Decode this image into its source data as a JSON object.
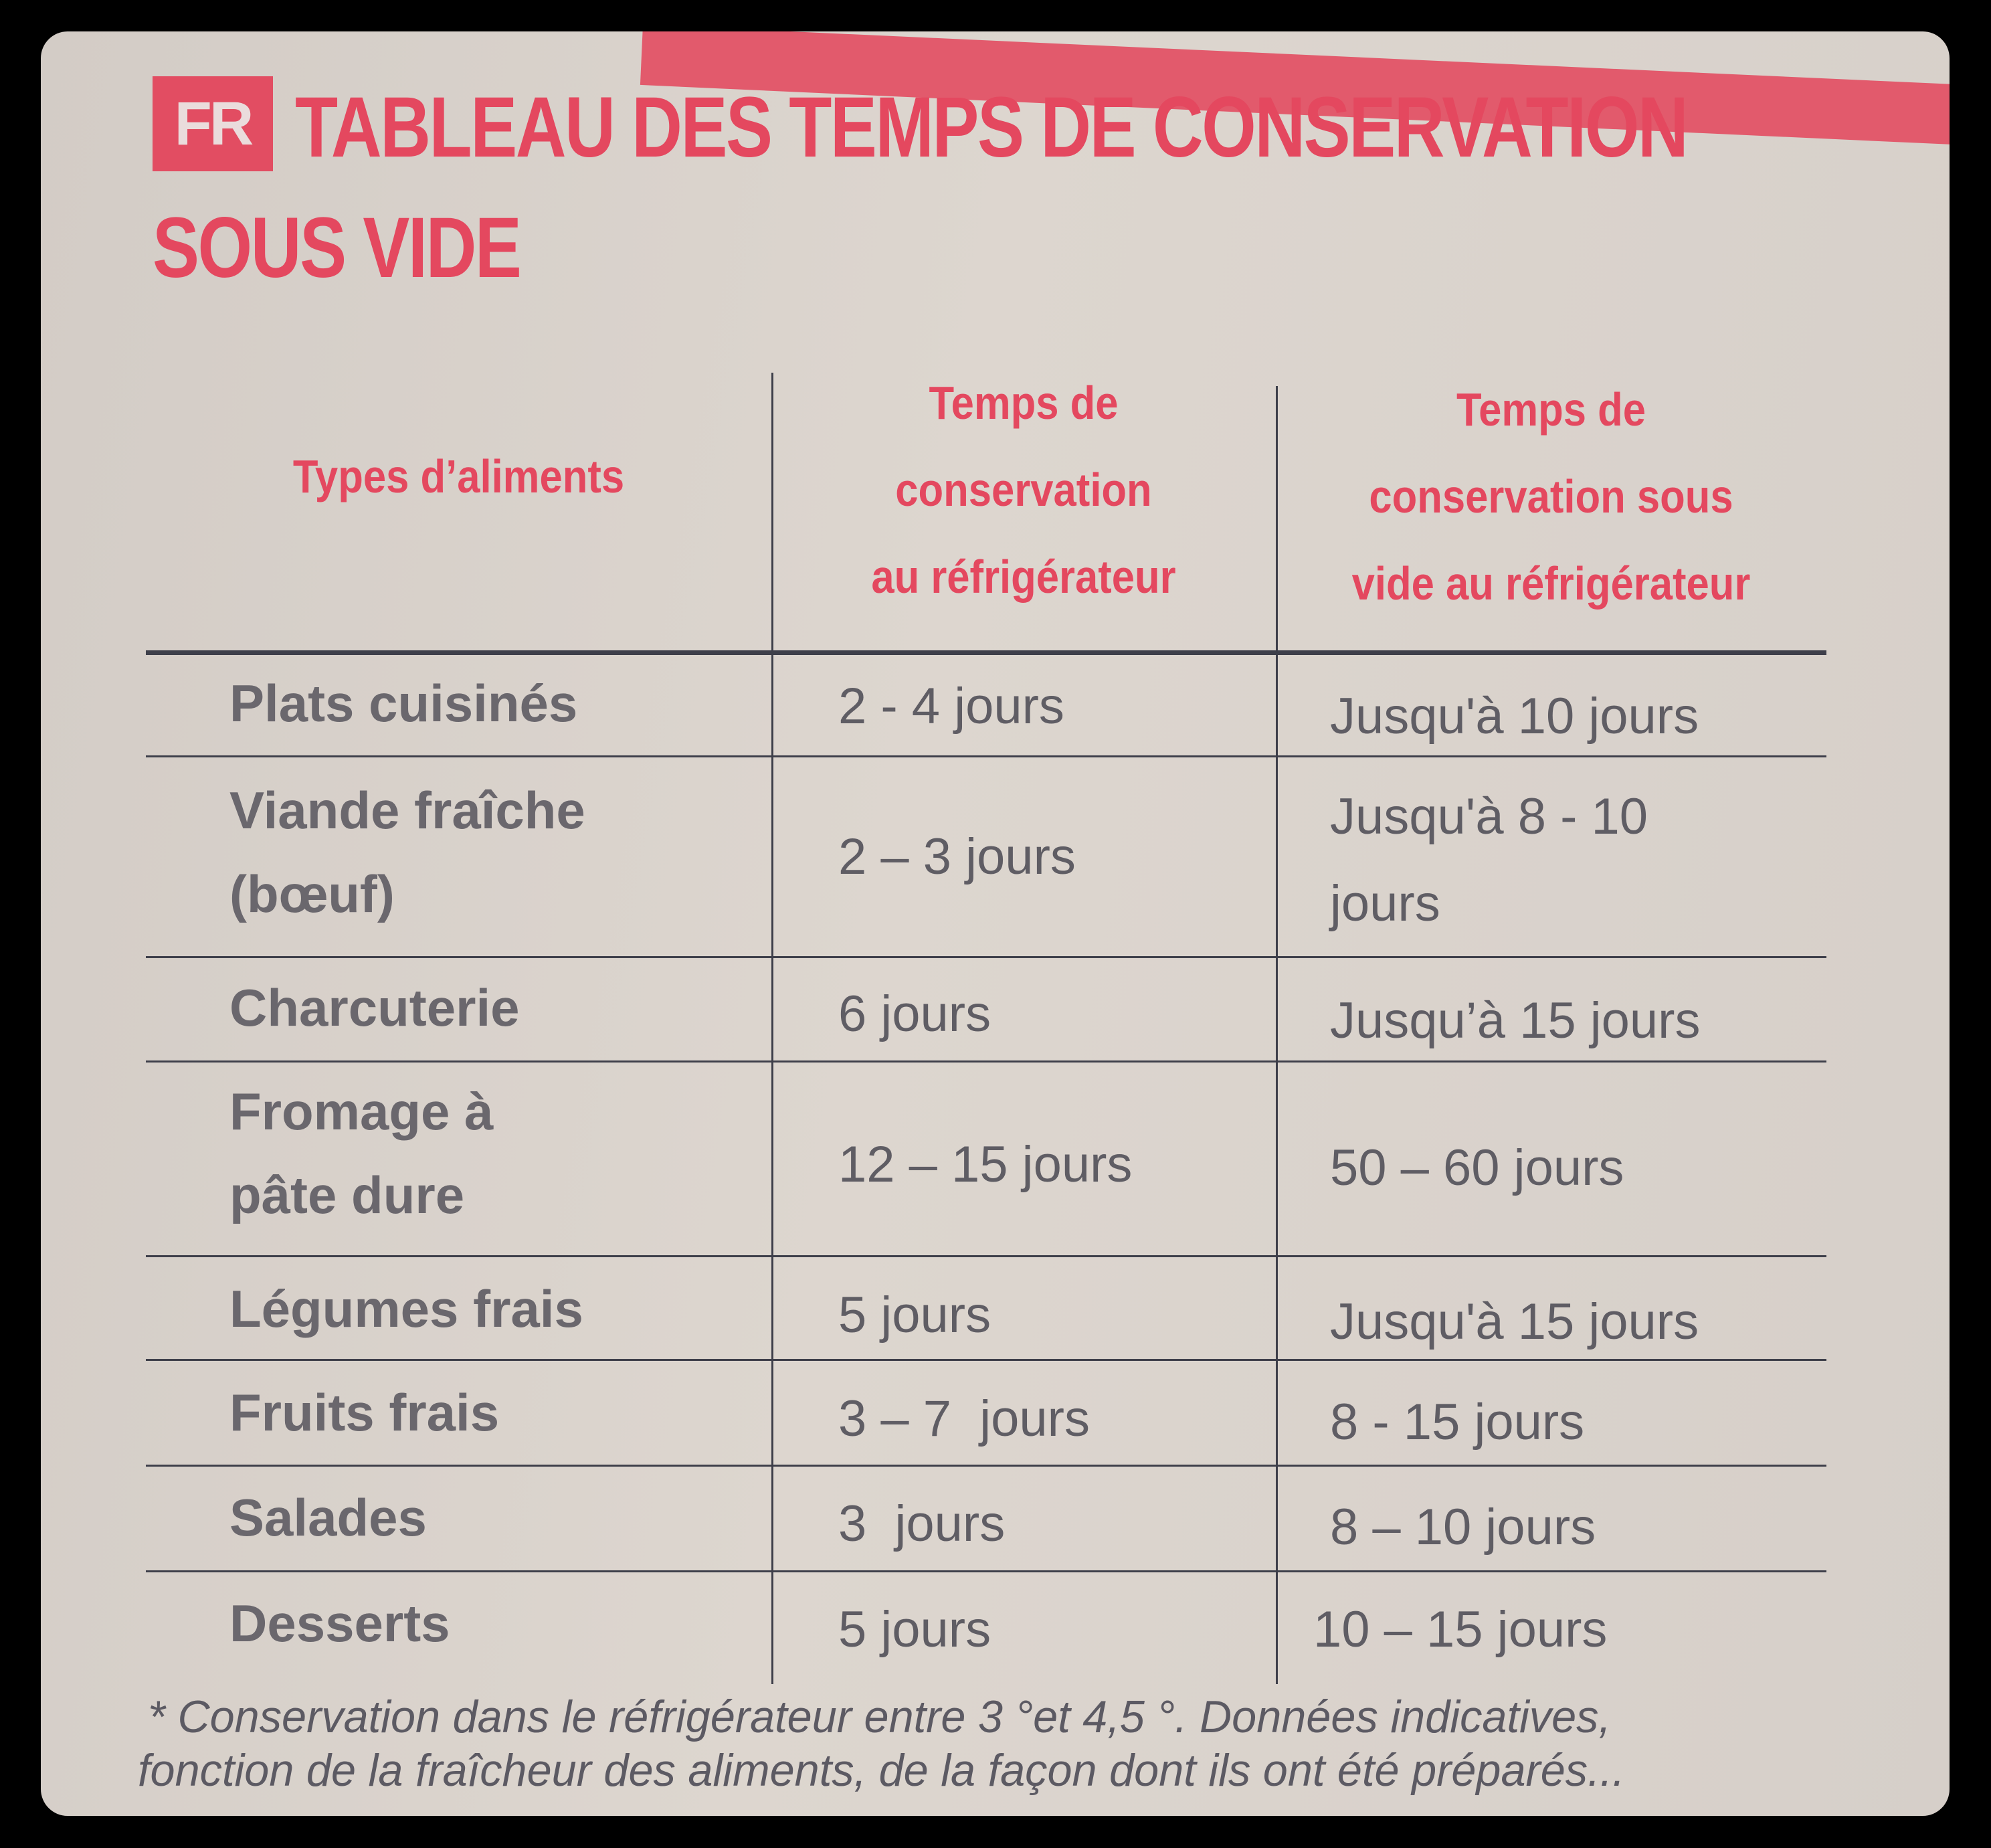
{
  "badge": "FR",
  "title_line1": "TABLEAU DES TEMPS DE CONSERVATION",
  "title_line2": "SOUS VIDE",
  "headers": {
    "col1": "Types d’aliments",
    "col2": [
      "Temps de",
      "conservation",
      "au réfrigérateur"
    ],
    "col3": [
      "Temps de",
      "conservation sous",
      "vide au réfrigérateur"
    ]
  },
  "rows": [
    {
      "food": [
        "Plats cuisinés"
      ],
      "fridge": "2 - 4 jours",
      "vacuum": [
        "Jusqu'à 10 jours"
      ]
    },
    {
      "food": [
        "Viande fraîche",
        "(bœuf)"
      ],
      "fridge": "2 – 3 jours",
      "vacuum": [
        "Jusqu'à 8 - 10",
        "jours"
      ]
    },
    {
      "food": [
        "Charcuterie"
      ],
      "fridge": "6 jours",
      "vacuum": [
        "Jusqu’à 15 jours"
      ]
    },
    {
      "food": [
        "Fromage à",
        "pâte dure"
      ],
      "fridge": "12 – 15 jours",
      "vacuum": [
        "50 – 60 jours"
      ]
    },
    {
      "food": [
        "Légumes frais"
      ],
      "fridge": "5 jours",
      "vacuum": [
        "Jusqu'à 15 jours"
      ]
    },
    {
      "food": [
        "Fruits frais"
      ],
      "fridge": "3 – 7  jours",
      "vacuum": [
        "8 - 15 jours"
      ]
    },
    {
      "food": [
        "Salades"
      ],
      "fridge": "3  jours",
      "vacuum": [
        "8 – 10 jours"
      ]
    },
    {
      "food": [
        "Desserts"
      ],
      "fridge": "5 jours",
      "vacuum": [
        "10 – 15 jours"
      ]
    }
  ],
  "footnote_line1": "* Conservation dans le réfrigérateur entre 3 °et 4,5 °. Données indicatives,",
  "footnote_line2": "fonction de la fraîcheur des aliments, de la façon dont ils ont été préparés...",
  "colors": {
    "accent": "#e4485f",
    "paper": "#d9d2cc",
    "text": "#5f5d64"
  }
}
